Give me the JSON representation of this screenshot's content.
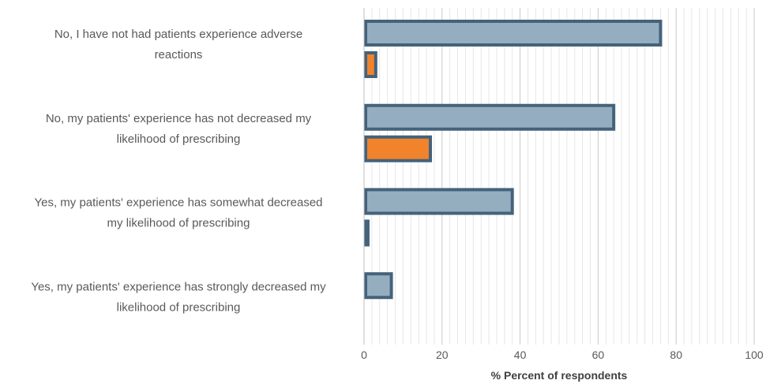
{
  "chart_data": {
    "type": "bar",
    "orientation": "horizontal",
    "categories": [
      [
        "No, I have not had patients experience adverse",
        "reactions"
      ],
      [
        "No, my patients' experience has not decreased my",
        "likelihood of prescribing"
      ],
      [
        "Yes, my patients' experience has somewhat decreased",
        "my likelihood of prescribing"
      ],
      [
        "Yes, my patients' experience has strongly decreased my",
        "likelihood of prescribing"
      ]
    ],
    "series": [
      {
        "values": [
          76,
          64,
          38,
          7
        ],
        "color": "#94aec0",
        "border": "#44627b"
      },
      {
        "values": [
          3,
          17,
          1,
          0
        ],
        "color": "#f0832b",
        "border": "#44627b"
      }
    ],
    "xlabel": "% Percent of respondents",
    "xlim": [
      0,
      100
    ],
    "xticks": [
      "0",
      "20",
      "40",
      "60",
      "80",
      "100"
    ],
    "grid": "vertical",
    "legend": "none"
  }
}
